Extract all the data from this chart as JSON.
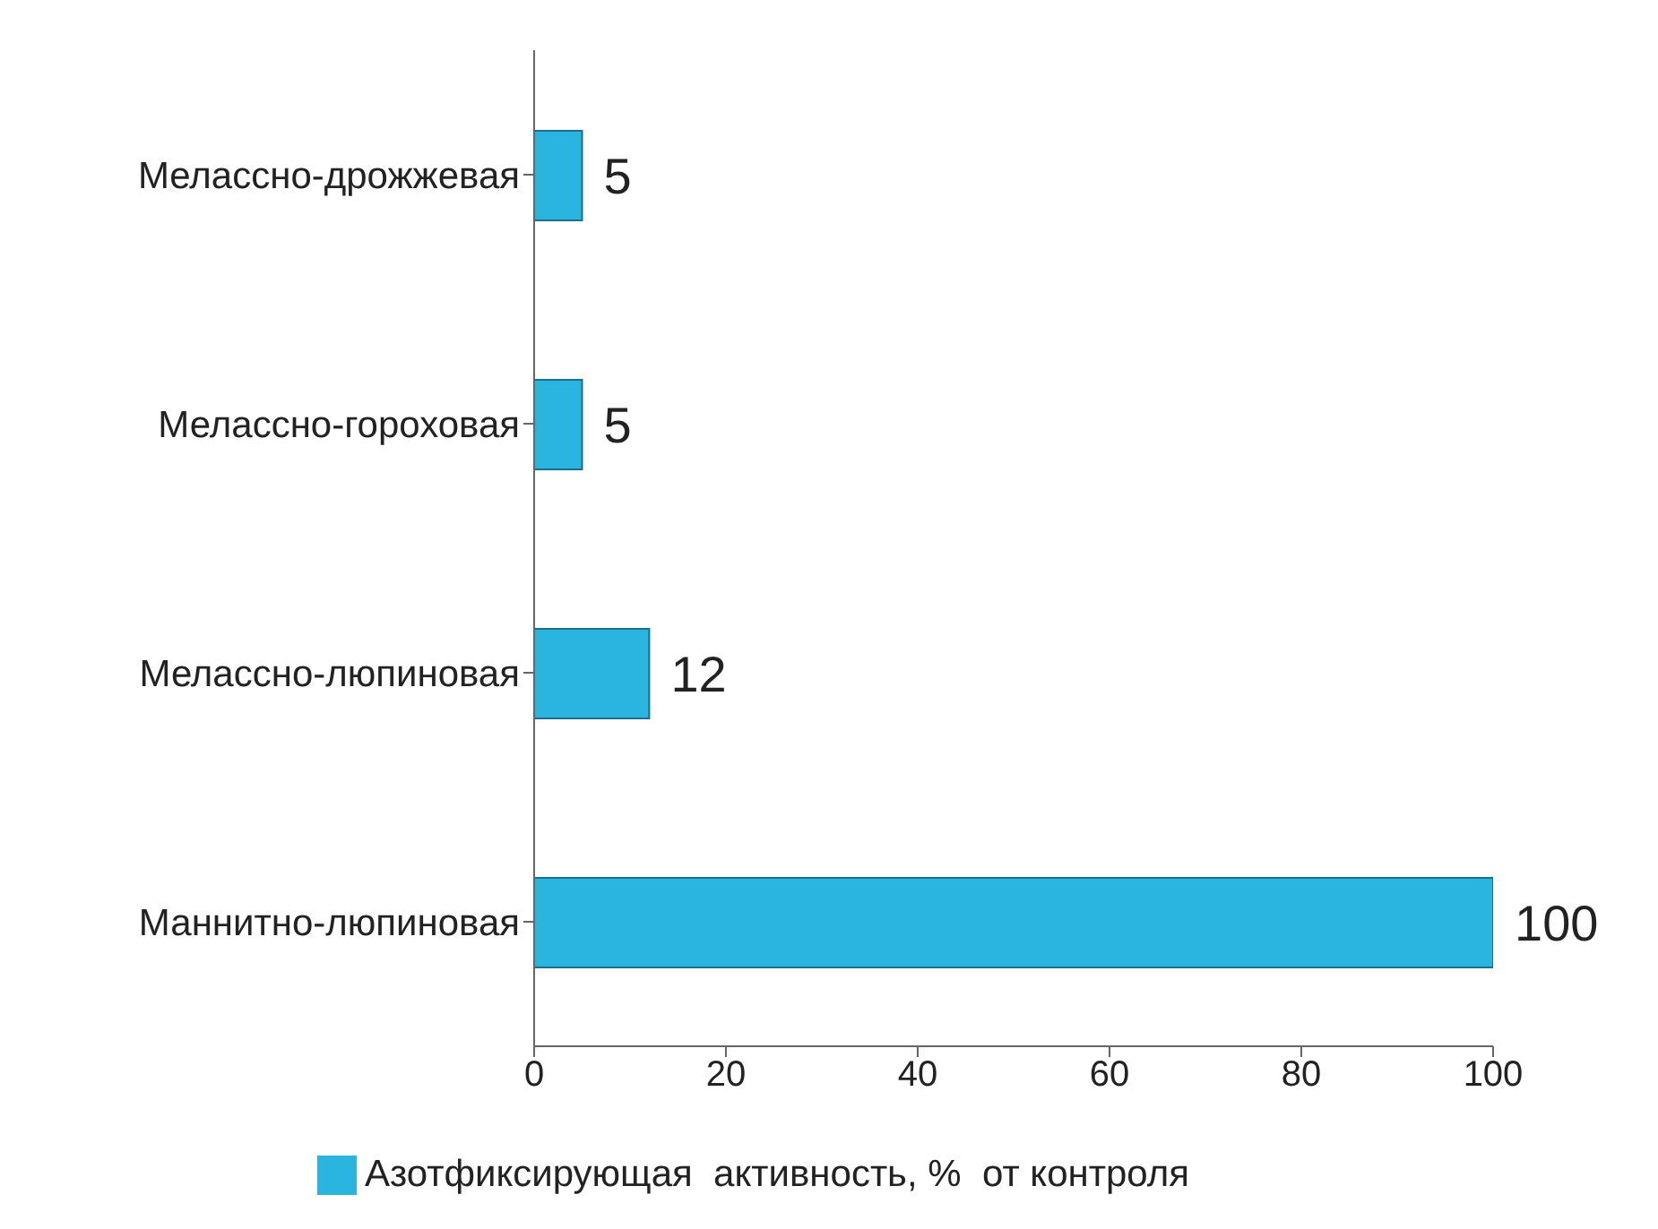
{
  "chart_data": {
    "type": "bar",
    "orientation": "horizontal",
    "categories": [
      "Мелассно-дрожжевая",
      "Мелассно-гороховая",
      "Мелассно-люпиновая",
      "Маннитно-люпиновая"
    ],
    "series": [
      {
        "name": "Азотфиксирующая  активность, %  от контроля",
        "color": "#29b5e0",
        "values": [
          5,
          5,
          12,
          100
        ]
      }
    ],
    "xlim": [
      0,
      100
    ],
    "xticks": [
      0,
      20,
      40,
      60,
      80,
      100
    ],
    "data_labels": true,
    "legend": "bottom"
  }
}
